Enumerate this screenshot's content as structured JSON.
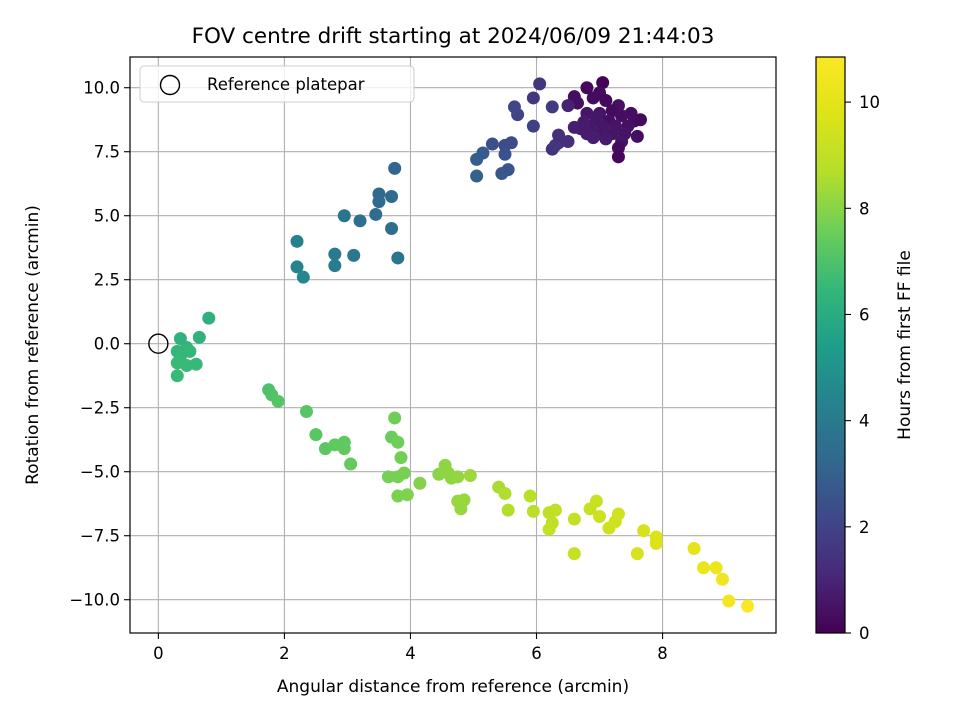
{
  "chart_data": {
    "type": "scatter",
    "title": "FOV centre drift starting at 2024/06/09 21:44:03",
    "xlabel": "Angular distance from reference (arcmin)",
    "ylabel": "Rotation from reference (arcmin)",
    "xlim": [
      -0.45,
      9.8
    ],
    "ylim": [
      -11.3,
      11.2
    ],
    "xticks": [
      0,
      2,
      4,
      6,
      8
    ],
    "yticks": [
      -10.0,
      -7.5,
      -5.0,
      -2.5,
      0.0,
      2.5,
      5.0,
      7.5,
      10.0
    ],
    "xtick_labels": [
      "0",
      "2",
      "4",
      "6",
      "8"
    ],
    "ytick_labels": [
      "−10.0",
      "−7.5",
      "−5.0",
      "−2.5",
      "0.0",
      "2.5",
      "5.0",
      "7.5",
      "10.0"
    ],
    "grid": true,
    "legend": {
      "placement": "top-left",
      "entries": [
        {
          "label": "Reference platepar",
          "marker": "open-circle"
        }
      ]
    },
    "reference_point": {
      "x": 0,
      "y": 0
    },
    "colorbar": {
      "label": "Hours from first FF file",
      "colormap": "viridis",
      "range": [
        0,
        10.85
      ],
      "ticks": [
        0,
        2,
        4,
        6,
        8,
        10
      ],
      "tick_labels": [
        "0",
        "2",
        "4",
        "6",
        "8",
        "10"
      ]
    },
    "points": [
      {
        "x": 7.05,
        "y": 10.2,
        "h": 0.1
      },
      {
        "x": 6.8,
        "y": 10.0,
        "h": 0.2
      },
      {
        "x": 7.0,
        "y": 9.8,
        "h": 0.25
      },
      {
        "x": 6.9,
        "y": 9.6,
        "h": 0.3
      },
      {
        "x": 6.6,
        "y": 9.65,
        "h": 0.35
      },
      {
        "x": 6.65,
        "y": 9.4,
        "h": 0.4
      },
      {
        "x": 7.1,
        "y": 9.5,
        "h": 0.2
      },
      {
        "x": 7.3,
        "y": 9.3,
        "h": 0.45
      },
      {
        "x": 7.2,
        "y": 9.1,
        "h": 0.3
      },
      {
        "x": 7.0,
        "y": 9.0,
        "h": 0.5
      },
      {
        "x": 6.8,
        "y": 9.0,
        "h": 0.55
      },
      {
        "x": 6.95,
        "y": 8.8,
        "h": 0.6
      },
      {
        "x": 7.15,
        "y": 8.7,
        "h": 0.4
      },
      {
        "x": 7.35,
        "y": 8.9,
        "h": 0.35
      },
      {
        "x": 7.55,
        "y": 8.7,
        "h": 0.3
      },
      {
        "x": 7.45,
        "y": 8.5,
        "h": 0.45
      },
      {
        "x": 7.25,
        "y": 8.5,
        "h": 0.5
      },
      {
        "x": 7.05,
        "y": 8.5,
        "h": 0.6
      },
      {
        "x": 6.85,
        "y": 8.5,
        "h": 0.65
      },
      {
        "x": 6.7,
        "y": 8.4,
        "h": 0.7
      },
      {
        "x": 6.8,
        "y": 8.2,
        "h": 0.75
      },
      {
        "x": 7.0,
        "y": 8.2,
        "h": 0.6
      },
      {
        "x": 7.2,
        "y": 8.2,
        "h": 0.55
      },
      {
        "x": 7.4,
        "y": 8.2,
        "h": 0.5
      },
      {
        "x": 7.6,
        "y": 8.1,
        "h": 0.4
      },
      {
        "x": 7.35,
        "y": 7.9,
        "h": 0.5
      },
      {
        "x": 7.3,
        "y": 7.65,
        "h": 0.3
      },
      {
        "x": 7.3,
        "y": 7.3,
        "h": 0.2
      },
      {
        "x": 7.1,
        "y": 8.0,
        "h": 0.7
      },
      {
        "x": 6.9,
        "y": 8.05,
        "h": 0.8
      },
      {
        "x": 6.6,
        "y": 8.45,
        "h": 0.8
      },
      {
        "x": 6.75,
        "y": 8.65,
        "h": 0.7
      },
      {
        "x": 7.65,
        "y": 8.75,
        "h": 0.3
      },
      {
        "x": 7.5,
        "y": 9.0,
        "h": 0.35
      },
      {
        "x": 6.5,
        "y": 9.3,
        "h": 0.9
      },
      {
        "x": 6.35,
        "y": 7.85,
        "h": 1.2
      },
      {
        "x": 6.5,
        "y": 7.9,
        "h": 1.3
      },
      {
        "x": 6.25,
        "y": 7.6,
        "h": 1.4
      },
      {
        "x": 6.3,
        "y": 7.75,
        "h": 1.5
      },
      {
        "x": 6.35,
        "y": 8.15,
        "h": 1.3
      },
      {
        "x": 6.05,
        "y": 10.15,
        "h": 1.5
      },
      {
        "x": 5.95,
        "y": 9.6,
        "h": 1.6
      },
      {
        "x": 6.25,
        "y": 9.25,
        "h": 1.7
      },
      {
        "x": 5.95,
        "y": 8.5,
        "h": 1.9
      },
      {
        "x": 5.7,
        "y": 8.95,
        "h": 2.0
      },
      {
        "x": 5.65,
        "y": 9.25,
        "h": 2.1
      },
      {
        "x": 5.6,
        "y": 7.85,
        "h": 2.2
      },
      {
        "x": 5.5,
        "y": 7.75,
        "h": 2.3
      },
      {
        "x": 5.3,
        "y": 7.8,
        "h": 2.4
      },
      {
        "x": 5.5,
        "y": 7.4,
        "h": 2.5
      },
      {
        "x": 5.55,
        "y": 6.8,
        "h": 2.6
      },
      {
        "x": 5.45,
        "y": 6.65,
        "h": 2.7
      },
      {
        "x": 5.15,
        "y": 7.45,
        "h": 2.8
      },
      {
        "x": 5.05,
        "y": 7.2,
        "h": 2.9
      },
      {
        "x": 5.05,
        "y": 6.55,
        "h": 3.0
      },
      {
        "x": 3.75,
        "y": 6.85,
        "h": 3.2
      },
      {
        "x": 3.5,
        "y": 5.85,
        "h": 3.3
      },
      {
        "x": 3.7,
        "y": 5.75,
        "h": 3.35
      },
      {
        "x": 3.5,
        "y": 5.55,
        "h": 3.4
      },
      {
        "x": 3.45,
        "y": 5.05,
        "h": 3.5
      },
      {
        "x": 2.95,
        "y": 5.0,
        "h": 3.7
      },
      {
        "x": 3.2,
        "y": 4.8,
        "h": 3.6
      },
      {
        "x": 3.7,
        "y": 4.5,
        "h": 3.55
      },
      {
        "x": 3.8,
        "y": 3.35,
        "h": 3.8
      },
      {
        "x": 3.1,
        "y": 3.45,
        "h": 3.9
      },
      {
        "x": 2.8,
        "y": 3.5,
        "h": 4.0
      },
      {
        "x": 2.8,
        "y": 3.05,
        "h": 4.1
      },
      {
        "x": 2.2,
        "y": 4.0,
        "h": 4.3
      },
      {
        "x": 2.2,
        "y": 3.0,
        "h": 4.4
      },
      {
        "x": 2.3,
        "y": 2.6,
        "h": 4.5
      },
      {
        "x": 0.8,
        "y": 1.0,
        "h": 6.2
      },
      {
        "x": 0.65,
        "y": 0.25,
        "h": 6.3
      },
      {
        "x": 0.35,
        "y": 0.2,
        "h": 6.3
      },
      {
        "x": 0.45,
        "y": -0.15,
        "h": 6.4
      },
      {
        "x": 0.3,
        "y": -0.3,
        "h": 6.4
      },
      {
        "x": 0.5,
        "y": -0.3,
        "h": 6.5
      },
      {
        "x": 0.35,
        "y": -0.5,
        "h": 6.5
      },
      {
        "x": 0.3,
        "y": -0.75,
        "h": 6.6
      },
      {
        "x": 0.45,
        "y": -0.85,
        "h": 6.6
      },
      {
        "x": 0.6,
        "y": -0.8,
        "h": 6.55
      },
      {
        "x": 0.3,
        "y": -1.25,
        "h": 6.6
      },
      {
        "x": 1.75,
        "y": -1.8,
        "h": 7.0
      },
      {
        "x": 1.8,
        "y": -2.0,
        "h": 7.05
      },
      {
        "x": 1.9,
        "y": -2.25,
        "h": 7.1
      },
      {
        "x": 2.35,
        "y": -2.65,
        "h": 7.15
      },
      {
        "x": 2.5,
        "y": -3.55,
        "h": 7.2
      },
      {
        "x": 2.65,
        "y": -4.1,
        "h": 7.25
      },
      {
        "x": 2.8,
        "y": -3.95,
        "h": 7.3
      },
      {
        "x": 2.95,
        "y": -3.85,
        "h": 7.3
      },
      {
        "x": 2.95,
        "y": -4.1,
        "h": 7.35
      },
      {
        "x": 3.05,
        "y": -4.7,
        "h": 7.4
      },
      {
        "x": 3.7,
        "y": -3.65,
        "h": 7.5
      },
      {
        "x": 3.75,
        "y": -2.9,
        "h": 7.6
      },
      {
        "x": 3.8,
        "y": -3.85,
        "h": 7.6
      },
      {
        "x": 3.85,
        "y": -4.45,
        "h": 7.65
      },
      {
        "x": 3.65,
        "y": -5.2,
        "h": 7.7
      },
      {
        "x": 3.8,
        "y": -5.2,
        "h": 7.7
      },
      {
        "x": 3.9,
        "y": -5.05,
        "h": 7.75
      },
      {
        "x": 3.8,
        "y": -5.95,
        "h": 7.8
      },
      {
        "x": 3.95,
        "y": -5.9,
        "h": 7.85
      },
      {
        "x": 4.15,
        "y": -5.45,
        "h": 7.9
      },
      {
        "x": 4.45,
        "y": -5.1,
        "h": 8.0
      },
      {
        "x": 4.55,
        "y": -4.75,
        "h": 8.05
      },
      {
        "x": 4.6,
        "y": -5.05,
        "h": 8.1
      },
      {
        "x": 4.65,
        "y": -5.25,
        "h": 8.1
      },
      {
        "x": 4.75,
        "y": -5.2,
        "h": 8.15
      },
      {
        "x": 4.75,
        "y": -6.15,
        "h": 8.2
      },
      {
        "x": 4.8,
        "y": -6.45,
        "h": 8.2
      },
      {
        "x": 4.85,
        "y": -6.1,
        "h": 8.25
      },
      {
        "x": 4.95,
        "y": -5.15,
        "h": 8.3
      },
      {
        "x": 5.4,
        "y": -5.6,
        "h": 8.5
      },
      {
        "x": 5.5,
        "y": -5.85,
        "h": 8.6
      },
      {
        "x": 5.55,
        "y": -6.5,
        "h": 8.65
      },
      {
        "x": 5.9,
        "y": -5.95,
        "h": 8.8
      },
      {
        "x": 5.95,
        "y": -6.55,
        "h": 8.85
      },
      {
        "x": 6.2,
        "y": -6.6,
        "h": 8.9
      },
      {
        "x": 6.25,
        "y": -7.0,
        "h": 9.0
      },
      {
        "x": 6.3,
        "y": -6.5,
        "h": 9.0
      },
      {
        "x": 6.2,
        "y": -7.25,
        "h": 9.05
      },
      {
        "x": 6.6,
        "y": -6.85,
        "h": 9.1
      },
      {
        "x": 6.6,
        "y": -8.2,
        "h": 9.15
      },
      {
        "x": 6.85,
        "y": -6.45,
        "h": 9.2
      },
      {
        "x": 6.95,
        "y": -6.15,
        "h": 9.25
      },
      {
        "x": 7.0,
        "y": -6.75,
        "h": 9.3
      },
      {
        "x": 7.15,
        "y": -7.2,
        "h": 9.35
      },
      {
        "x": 7.25,
        "y": -6.95,
        "h": 9.4
      },
      {
        "x": 7.3,
        "y": -6.65,
        "h": 9.45
      },
      {
        "x": 7.6,
        "y": -8.2,
        "h": 9.55
      },
      {
        "x": 7.7,
        "y": -7.3,
        "h": 9.6
      },
      {
        "x": 7.9,
        "y": -7.55,
        "h": 9.7
      },
      {
        "x": 7.9,
        "y": -7.8,
        "h": 9.75
      },
      {
        "x": 8.5,
        "y": -8.0,
        "h": 10.1
      },
      {
        "x": 8.65,
        "y": -8.75,
        "h": 10.2
      },
      {
        "x": 8.85,
        "y": -8.75,
        "h": 10.3
      },
      {
        "x": 8.95,
        "y": -9.2,
        "h": 10.4
      },
      {
        "x": 9.05,
        "y": -10.05,
        "h": 10.6
      },
      {
        "x": 9.35,
        "y": -10.25,
        "h": 10.8
      }
    ]
  }
}
